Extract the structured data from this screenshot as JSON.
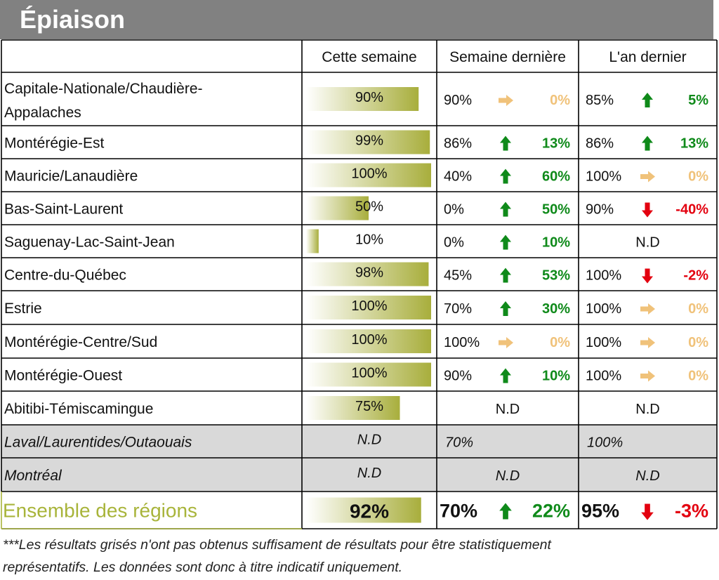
{
  "title": "Épiaison",
  "columns": [
    "Cette semaine",
    "Semaine dernière",
    "L'an dernier"
  ],
  "colors": {
    "up": "#0f8a1a",
    "down": "#e3000f",
    "neutral": "#f0c27a",
    "bar_dark": "#a8ae3c",
    "bar_light": "#ffffff",
    "summary_label": "#a8b43a",
    "grey_row": "#d9d9d9",
    "header_bg": "#818181"
  },
  "chart_data": {
    "type": "table",
    "rows": [
      {
        "region": [
          "Capitale-Nationale/Chaudière-",
          "Appalaches"
        ],
        "this_week": {
          "value": 90,
          "label": "90%"
        },
        "last_week": {
          "value": "90%",
          "trend": "right",
          "diff": "0%"
        },
        "last_year": {
          "value": "85%",
          "trend": "up",
          "diff": "5%"
        }
      },
      {
        "region": [
          "Montérégie-Est"
        ],
        "this_week": {
          "value": 99,
          "label": "99%"
        },
        "last_week": {
          "value": "86%",
          "trend": "up",
          "diff": "13%"
        },
        "last_year": {
          "value": "86%",
          "trend": "up",
          "diff": "13%"
        }
      },
      {
        "region": [
          "Mauricie/Lanaudière"
        ],
        "this_week": {
          "value": 100,
          "label": "100%"
        },
        "last_week": {
          "value": "40%",
          "trend": "up",
          "diff": "60%"
        },
        "last_year": {
          "value": "100%",
          "trend": "right",
          "diff": "0%"
        }
      },
      {
        "region": [
          "Bas-Saint-Laurent"
        ],
        "this_week": {
          "value": 50,
          "label": "50%"
        },
        "last_week": {
          "value": "0%",
          "trend": "up",
          "diff": "50%"
        },
        "last_year": {
          "value": "90%",
          "trend": "down",
          "diff": "-40%"
        }
      },
      {
        "region": [
          "Saguenay-Lac-Saint-Jean"
        ],
        "this_week": {
          "value": 10,
          "label": "10%"
        },
        "last_week": {
          "value": "0%",
          "trend": "up",
          "diff": "10%"
        },
        "last_year": {
          "nd": "N.D"
        }
      },
      {
        "region": [
          "Centre-du-Québec"
        ],
        "this_week": {
          "value": 98,
          "label": "98%"
        },
        "last_week": {
          "value": "45%",
          "trend": "up",
          "diff": "53%"
        },
        "last_year": {
          "value": "100%",
          "trend": "down",
          "diff": "-2%"
        }
      },
      {
        "region": [
          "Estrie"
        ],
        "this_week": {
          "value": 100,
          "label": "100%"
        },
        "last_week": {
          "value": "70%",
          "trend": "up",
          "diff": "30%"
        },
        "last_year": {
          "value": "100%",
          "trend": "right",
          "diff": "0%"
        }
      },
      {
        "region": [
          "Montérégie-Centre/Sud"
        ],
        "this_week": {
          "value": 100,
          "label": "100%"
        },
        "last_week": {
          "value": "100%",
          "trend": "right",
          "diff": "0%"
        },
        "last_year": {
          "value": "100%",
          "trend": "right",
          "diff": "0%"
        }
      },
      {
        "region": [
          "Montérégie-Ouest"
        ],
        "this_week": {
          "value": 100,
          "label": "100%"
        },
        "last_week": {
          "value": "90%",
          "trend": "up",
          "diff": "10%"
        },
        "last_year": {
          "value": "100%",
          "trend": "right",
          "diff": "0%"
        }
      },
      {
        "region": [
          "Abitibi-Témiscamingue"
        ],
        "this_week": {
          "value": 75,
          "label": "75%"
        },
        "last_week": {
          "nd": "N.D"
        },
        "last_year": {
          "nd": "N.D"
        }
      },
      {
        "region": [
          "Laval/Laurentides/Outaouais"
        ],
        "greyed": true,
        "this_week": {
          "nd": "N.D"
        },
        "last_week": {
          "plain": "70%"
        },
        "last_year": {
          "plain": "100%"
        }
      },
      {
        "region": [
          "Montréal"
        ],
        "greyed": true,
        "this_week": {
          "nd": "N.D"
        },
        "last_week": {
          "nd": "N.D"
        },
        "last_year": {
          "nd": "N.D"
        }
      }
    ],
    "summary": {
      "region": [
        "Ensemble des régions"
      ],
      "this_week": {
        "value": 92,
        "label": "92%"
      },
      "last_week": {
        "value": "70%",
        "trend": "up",
        "diff": "22%"
      },
      "last_year": {
        "value": "95%",
        "trend": "down",
        "diff": "-3%"
      }
    }
  },
  "footnote": [
    "***Les résultats grisés n'ont pas obtenus suffisament de résultats pour être statistiquement",
    "représentatifs. Les données sont donc à titre indicatif uniquement."
  ]
}
